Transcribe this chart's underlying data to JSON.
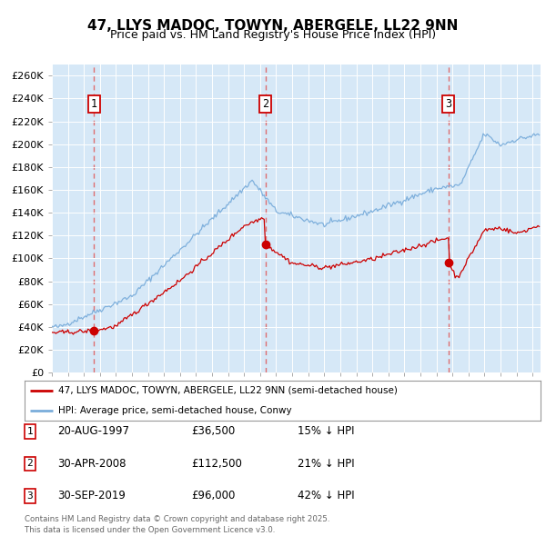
{
  "title": "47, LLYS MADOC, TOWYN, ABERGELE, LL22 9NN",
  "subtitle": "Price paid vs. HM Land Registry's House Price Index (HPI)",
  "ylabel_ticks": [
    "£0",
    "£20K",
    "£40K",
    "£60K",
    "£80K",
    "£100K",
    "£120K",
    "£140K",
    "£160K",
    "£180K",
    "£200K",
    "£220K",
    "£240K",
    "£260K"
  ],
  "ylim": [
    0,
    270000
  ],
  "xlim_start": 1995.0,
  "xlim_end": 2025.5,
  "background_color": "#d6e8f7",
  "grid_color": "#ffffff",
  "red_line_color": "#cc0000",
  "blue_line_color": "#7aaddb",
  "sale_dates": [
    1997.64,
    2008.33,
    2019.75
  ],
  "sale_prices": [
    36500,
    112500,
    96000
  ],
  "sale_labels": [
    "1",
    "2",
    "3"
  ],
  "vline_color": "#e06060",
  "legend_entries": [
    "47, LLYS MADOC, TOWYN, ABERGELE, LL22 9NN (semi-detached house)",
    "HPI: Average price, semi-detached house, Conwy"
  ],
  "table_rows": [
    {
      "num": "1",
      "date": "20-AUG-1997",
      "price": "£36,500",
      "pct": "15% ↓ HPI"
    },
    {
      "num": "2",
      "date": "30-APR-2008",
      "price": "£112,500",
      "pct": "21% ↓ HPI"
    },
    {
      "num": "3",
      "date": "30-SEP-2019",
      "price": "£96,000",
      "pct": "42% ↓ HPI"
    }
  ],
  "footer": "Contains HM Land Registry data © Crown copyright and database right 2025.\nThis data is licensed under the Open Government Licence v3.0."
}
